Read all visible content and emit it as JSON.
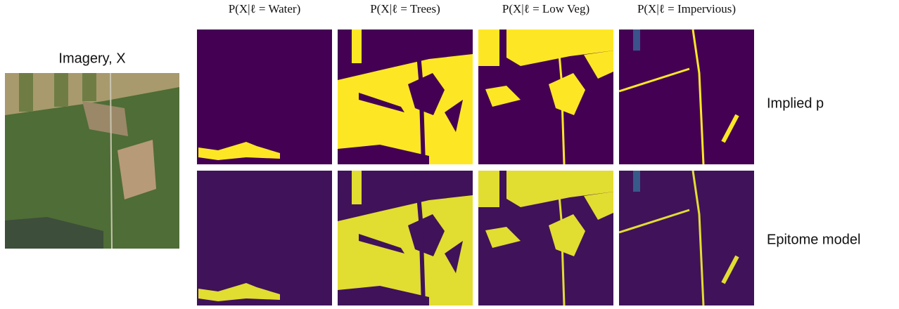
{
  "imagery_label": "Imagery, X",
  "columns": [
    "P(X|ℓ = Water)",
    "P(X|ℓ = Trees)",
    "P(X|ℓ = Low Veg)",
    "P(X|ℓ = Impervious)"
  ],
  "rows": [
    "Implied p",
    "Epitome model"
  ]
}
